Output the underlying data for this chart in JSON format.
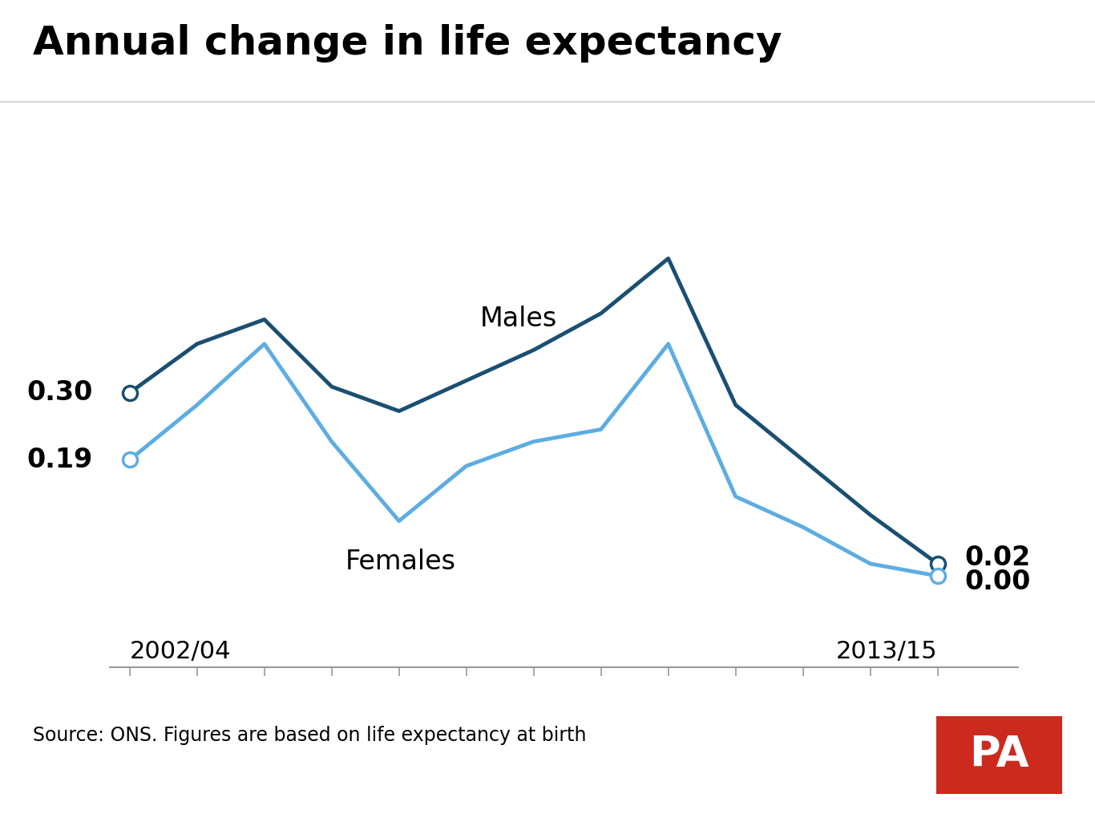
{
  "title": "Annual change in life expectancy",
  "source": "Source: ONS. Figures are based on life expectancy at birth",
  "xlabel_left": "2002/04",
  "xlabel_right": "2013/15",
  "males_color": "#1a4f72",
  "females_color": "#5dade2",
  "males_label": "Males",
  "females_label": "Females",
  "background_color": "#ffffff",
  "x_values": [
    0,
    1,
    2,
    3,
    4,
    5,
    6,
    7,
    8,
    9,
    10,
    11,
    12
  ],
  "males_values": [
    0.3,
    0.38,
    0.42,
    0.31,
    0.27,
    0.32,
    0.37,
    0.43,
    0.52,
    0.28,
    0.19,
    0.1,
    0.02
  ],
  "females_values": [
    0.19,
    0.28,
    0.38,
    0.22,
    0.09,
    0.18,
    0.22,
    0.24,
    0.38,
    0.13,
    0.08,
    0.02,
    0.0
  ],
  "males_start_label": "0.30",
  "females_start_label": "0.19",
  "males_end_label": "0.02",
  "females_end_label": "0.00",
  "title_fontsize": 36,
  "label_fontsize": 24,
  "tick_fontsize": 22,
  "source_fontsize": 17,
  "pa_bg_color": "#cc2a1e",
  "pa_text_color": "#ffffff"
}
